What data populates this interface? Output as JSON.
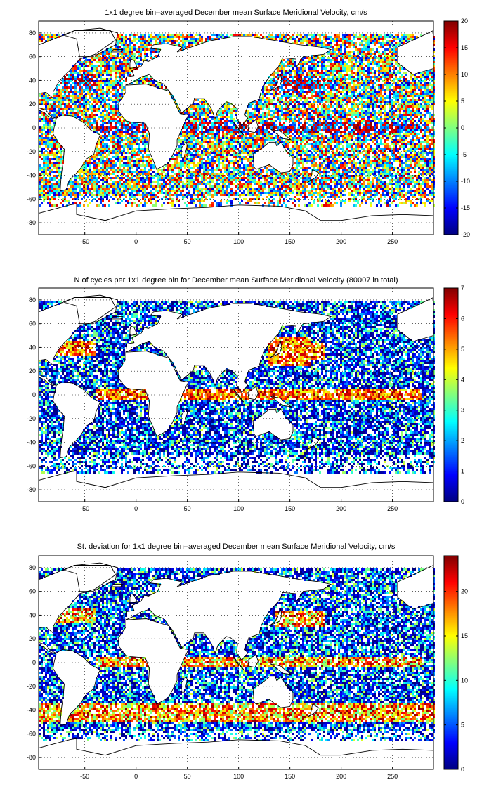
{
  "chart_data": [
    {
      "type": "heatmap",
      "title": "1x1 degree bin–averaged December mean Surface Meridional Velocity, cm/s",
      "xlim": [
        -95,
        290
      ],
      "ylim": [
        -90,
        90
      ],
      "xticks": [
        -50,
        0,
        50,
        100,
        150,
        200,
        250
      ],
      "yticks": [
        80,
        60,
        40,
        20,
        0,
        -20,
        -40,
        -60,
        -80
      ],
      "xlabel": "",
      "ylabel": "",
      "grid": true,
      "colormap": "jet",
      "colorbar": {
        "min": -20,
        "max": 20,
        "ticks": [
          20,
          15,
          10,
          5,
          0,
          -5,
          -10,
          -15,
          -20
        ]
      },
      "colors": {
        "background": "#ffffff",
        "grid": "#000000"
      }
    },
    {
      "type": "heatmap",
      "title": "N of cycles per 1x1 degree bin for December mean Surface Meridional Velocity (80007 in total)",
      "xlim": [
        -95,
        290
      ],
      "ylim": [
        -90,
        90
      ],
      "xticks": [
        -50,
        0,
        50,
        100,
        150,
        200,
        250
      ],
      "yticks": [
        80,
        60,
        40,
        20,
        0,
        -20,
        -40,
        -60,
        -80
      ],
      "xlabel": "",
      "ylabel": "",
      "grid": true,
      "colormap": "jet",
      "colorbar": {
        "min": 0,
        "max": 7,
        "ticks": [
          7,
          6,
          5,
          4,
          3,
          2,
          1,
          0
        ]
      }
    },
    {
      "type": "heatmap",
      "title": "St. deviation for 1x1 degree bin–averaged December mean Surface Meridional Velocity, cm/s",
      "xlim": [
        -95,
        290
      ],
      "ylim": [
        -90,
        90
      ],
      "xticks": [
        -50,
        0,
        50,
        100,
        150,
        200,
        250
      ],
      "yticks": [
        80,
        60,
        40,
        20,
        0,
        -20,
        -40,
        -60,
        -80
      ],
      "xlabel": "",
      "ylabel": "",
      "grid": true,
      "colormap": "jet",
      "colorbar": {
        "min": 0,
        "max": 24,
        "ticks": [
          20,
          15,
          10,
          5,
          0
        ]
      }
    }
  ]
}
